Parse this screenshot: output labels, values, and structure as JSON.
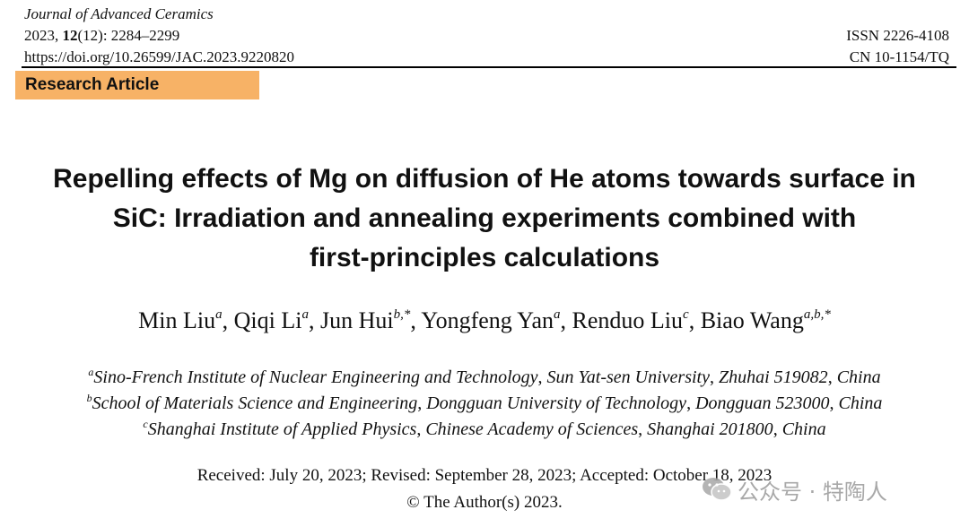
{
  "header": {
    "journal_name": "Journal of Advanced Ceramics",
    "citation_year": "2023,",
    "citation_volume": "12",
    "citation_rest": "(12): 2284–2299",
    "doi": "https://doi.org/10.26599/JAC.2023.9220820",
    "issn": "ISSN 2226-4108",
    "cn": "CN 10-1154/TQ"
  },
  "badge": {
    "label": "Research Article",
    "color": "#f7b266"
  },
  "title": {
    "line1": "Repelling effects of Mg on diffusion of He atoms towards surface in",
    "line2": "SiC: Irradiation and annealing experiments combined with",
    "line3": "first-principles calculations"
  },
  "authors": [
    {
      "name": "Min Liu",
      "sup": "a"
    },
    {
      "name": "Qiqi Li",
      "sup": "a"
    },
    {
      "name": "Jun Hui",
      "sup": "b,*"
    },
    {
      "name": "Yongfeng Yan",
      "sup": "a"
    },
    {
      "name": "Renduo Liu",
      "sup": "c"
    },
    {
      "name": "Biao Wang",
      "sup": "a,b,*"
    }
  ],
  "affiliations": [
    {
      "sup": "a",
      "parts": [
        "Sino-French Institute of Nuclear Engineering and Technology",
        "Sun Yat-sen University",
        "Zhuhai 519082",
        "China"
      ]
    },
    {
      "sup": "b",
      "parts": [
        "School of Materials Science and Engineering",
        "Dongguan University of Technology",
        "Dongguan 523000",
        "China"
      ]
    },
    {
      "sup": "c",
      "parts": [
        "Shanghai Institute of Applied Physics",
        "Chinese Academy of Sciences",
        "Shanghai 201800",
        "China"
      ]
    }
  ],
  "dates": {
    "line1": "Received: July 20, 2023; Revised: September 28, 2023; Accepted: October 18, 2023",
    "line2": "© The Author(s) 2023."
  },
  "watermark": {
    "icon": "wechat-icon",
    "text": "公众号 · 特陶人"
  }
}
